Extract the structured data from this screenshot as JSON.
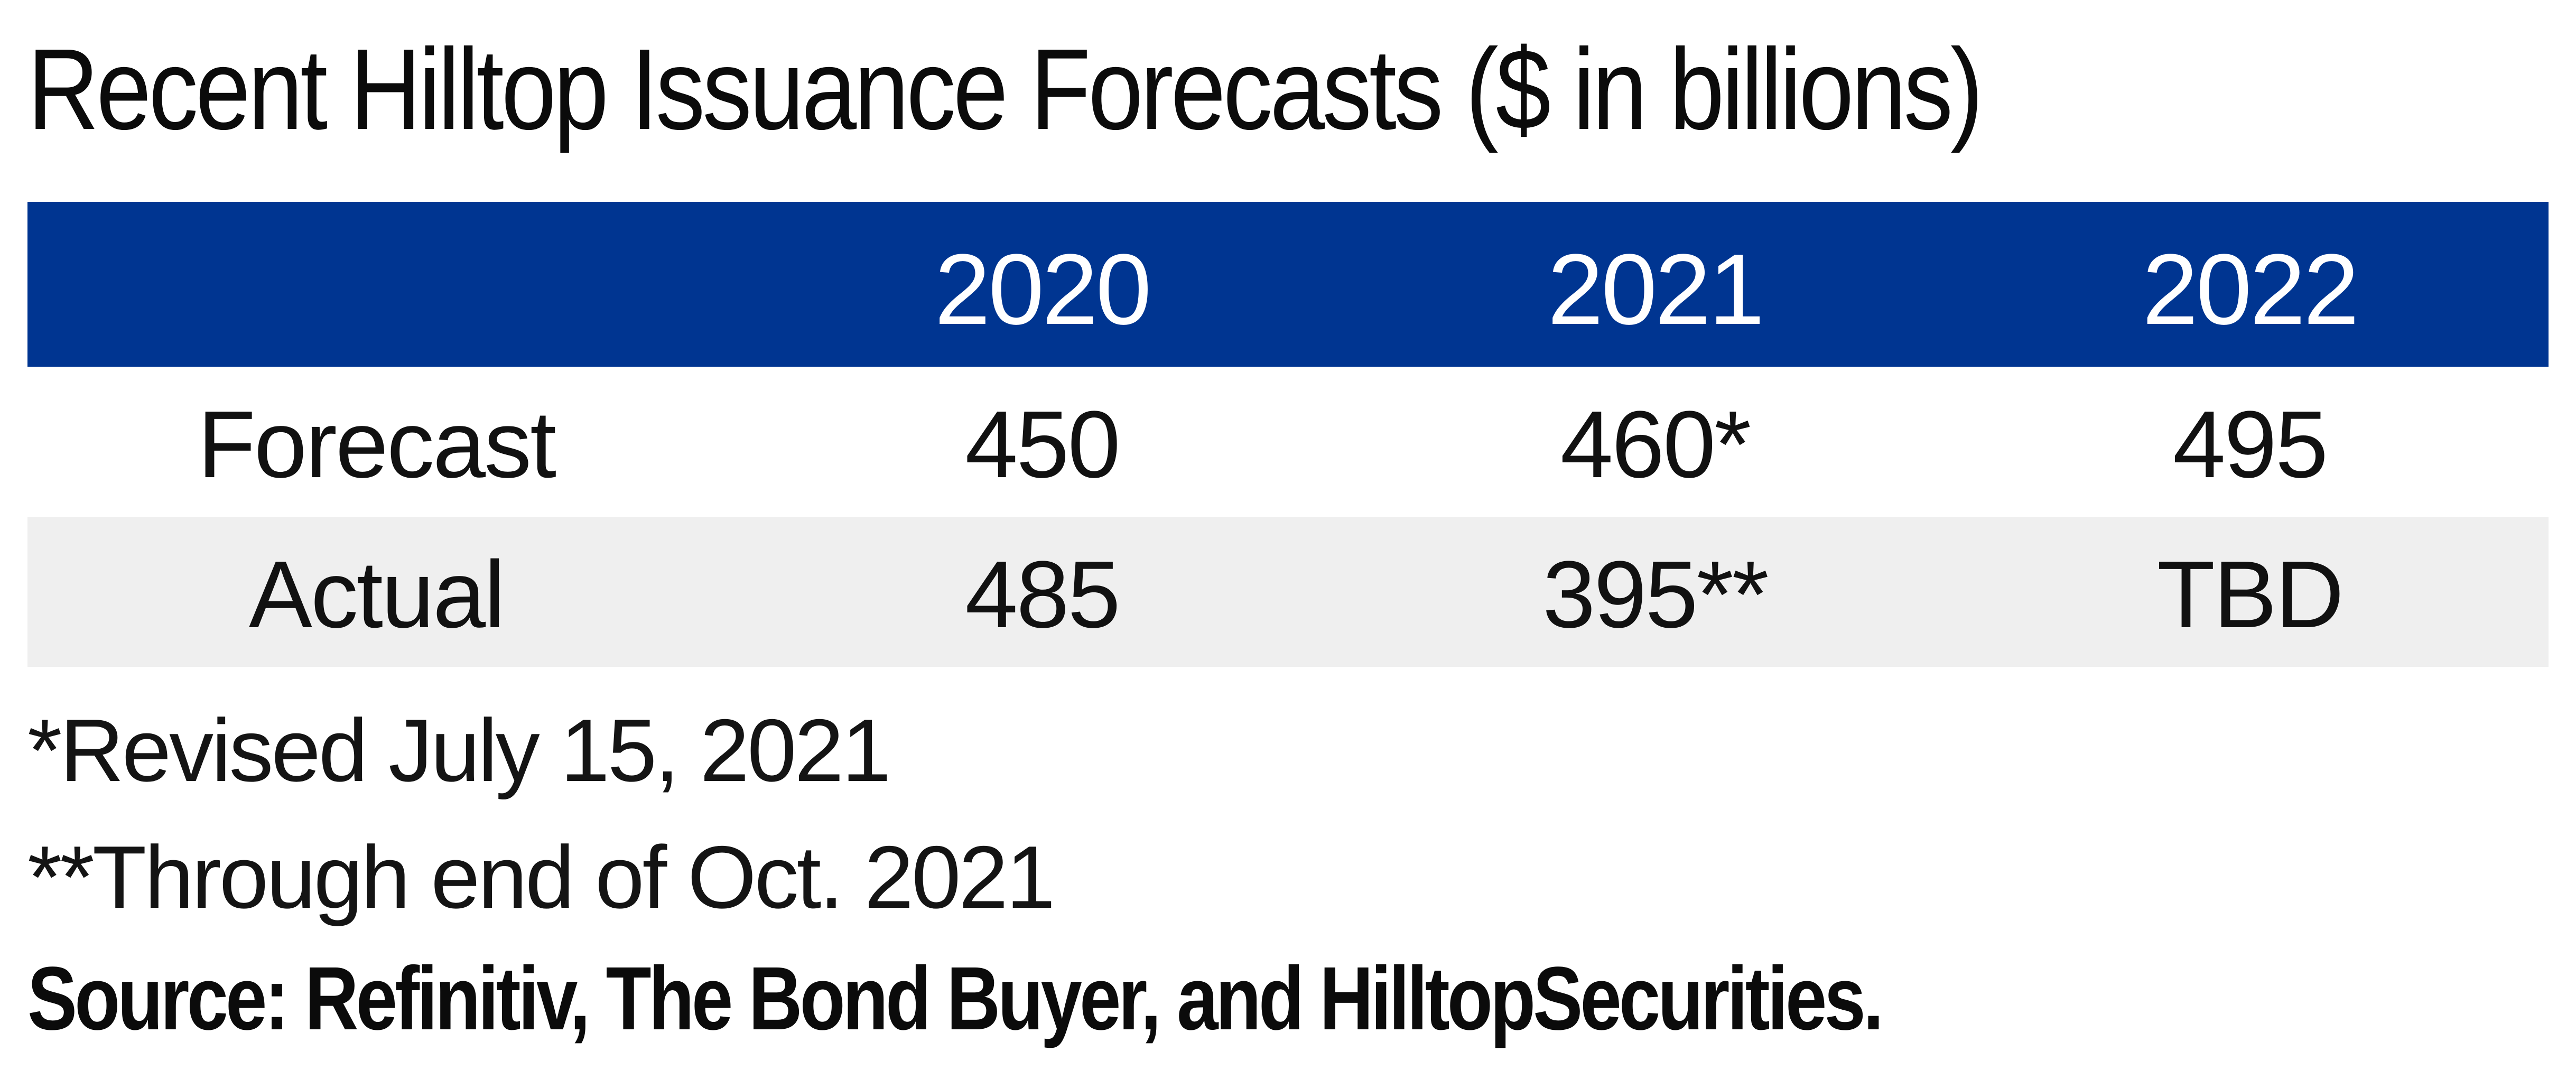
{
  "chart_data": {
    "type": "table",
    "title": "Recent Hilltop Issuance Forecasts ($ in billions)",
    "columns": [
      "",
      "2020",
      "2021",
      "2022"
    ],
    "rows": [
      {
        "label": "Forecast",
        "values": [
          "450",
          "460*",
          "495"
        ]
      },
      {
        "label": "Actual",
        "values": [
          "485",
          "395**",
          "TBD"
        ]
      }
    ],
    "footnotes": [
      "*Revised July 15, 2021",
      "**Through end of Oct. 2021"
    ],
    "source": "Source: Refinitiv, The Bond Buyer, and HilltopSecurities.",
    "colors": {
      "header_background": "#003591",
      "header_text": "#ffffff",
      "alt_row_background": "#efefef"
    }
  }
}
